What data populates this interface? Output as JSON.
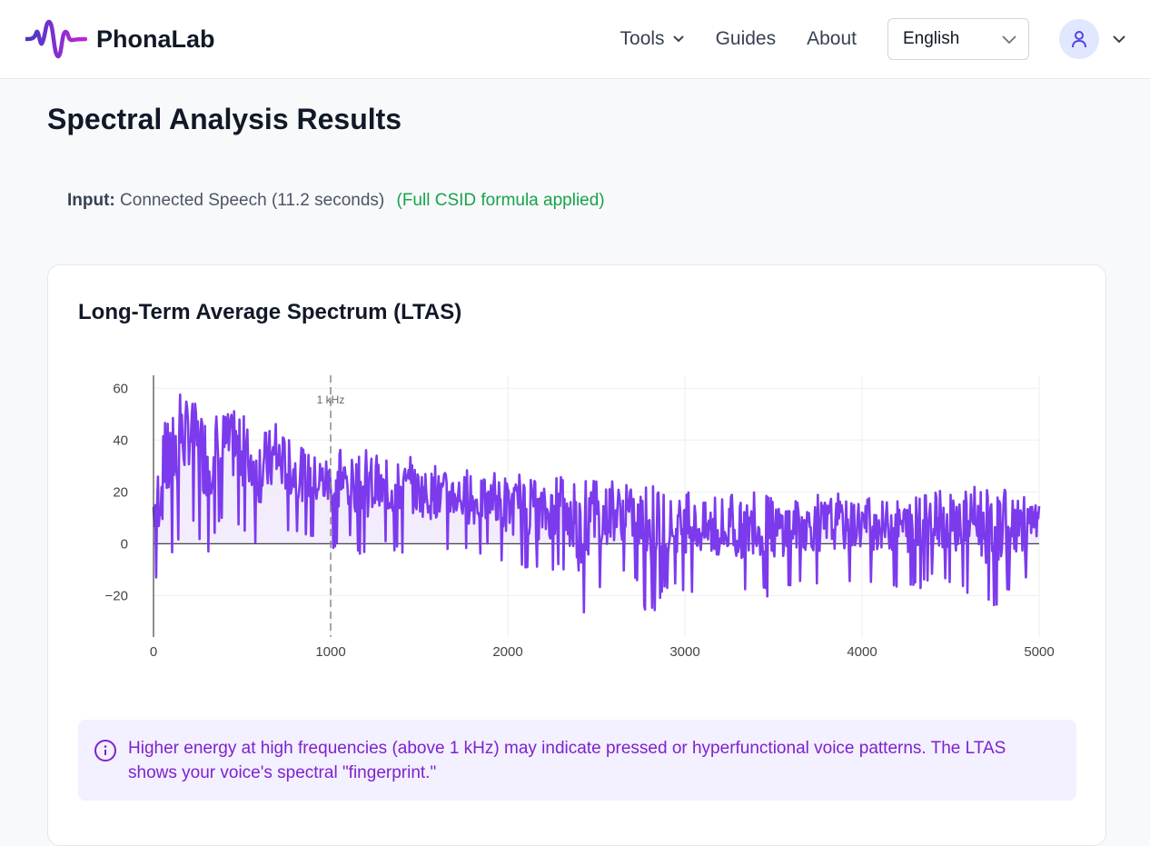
{
  "nav": {
    "brand": "PhonaLab",
    "links": [
      {
        "label": "Tools",
        "has_dropdown": true
      },
      {
        "label": "Guides"
      },
      {
        "label": "About"
      }
    ],
    "language": "English",
    "user_icon": "user-icon"
  },
  "page": {
    "title": "Spectral Analysis Results",
    "input_label": "Input:",
    "input_value": "Connected Speech (11.2 seconds)",
    "input_note": "(Full CSID formula applied)"
  },
  "card": {
    "title": "Long-Term Average Spectrum (LTAS)",
    "info_icon": "info-icon",
    "info_text": "Higher energy at high frequencies (above 1 kHz) may indicate pressed or hyperfunctional voice patterns. The LTAS shows your voice's spectral \"fingerprint.\""
  },
  "colors": {
    "accent": "#7c3aed",
    "fill": "#f1eafd",
    "success": "#16a34a",
    "info_text": "#7e22ce",
    "info_bg": "#f3f0ff"
  },
  "chart_data": {
    "type": "line",
    "title": "",
    "xlabel": "",
    "ylabel": "",
    "xlim": [
      0,
      5000
    ],
    "ylim": [
      -36,
      65
    ],
    "xticks": [
      0,
      1000,
      2000,
      3000,
      4000,
      5000
    ],
    "yticks": [
      -20,
      0,
      20,
      40,
      60
    ],
    "grid": true,
    "fill": "tozeroy",
    "annotation": {
      "x": 1000,
      "label": "1 kHz",
      "style": "dashed"
    },
    "x": [
      0,
      100,
      200,
      300,
      400,
      500,
      600,
      700,
      800,
      900,
      1000,
      1100,
      1200,
      1300,
      1400,
      1500,
      1600,
      1700,
      1800,
      1900,
      2000,
      2100,
      2200,
      2300,
      2400,
      2500,
      2600,
      2700,
      2800,
      2900,
      3000,
      3100,
      3200,
      3300,
      3400,
      3500,
      3600,
      3700,
      3800,
      3900,
      4000,
      4100,
      4200,
      4300,
      4400,
      4500,
      4600,
      4700,
      4800,
      4900,
      5000
    ],
    "upper": [
      29,
      57,
      60,
      55,
      55,
      51,
      48,
      48,
      41,
      37,
      38,
      36,
      37,
      32,
      35,
      32,
      30,
      31,
      28,
      27,
      28,
      26,
      25,
      26,
      25,
      25,
      26,
      24,
      23,
      21,
      20,
      19,
      20,
      19,
      20,
      19,
      20,
      19,
      20,
      19,
      20,
      19,
      20,
      19,
      20,
      21,
      23,
      22,
      21,
      20,
      17
    ],
    "lower": [
      -18,
      -8,
      12,
      -6,
      10,
      5,
      -5,
      5,
      3,
      2,
      -4,
      0,
      -6,
      -2,
      -4,
      -2,
      -4,
      -3,
      -6,
      -3,
      -12,
      -10,
      -14,
      -10,
      -32,
      -18,
      -14,
      -12,
      -30,
      -18,
      -18,
      -20,
      -24,
      -22,
      -18,
      -22,
      -17,
      -16,
      -18,
      -16,
      -15,
      -16,
      -17,
      -18,
      -15,
      -16,
      -20,
      -26,
      -22,
      -18,
      -10
    ]
  }
}
